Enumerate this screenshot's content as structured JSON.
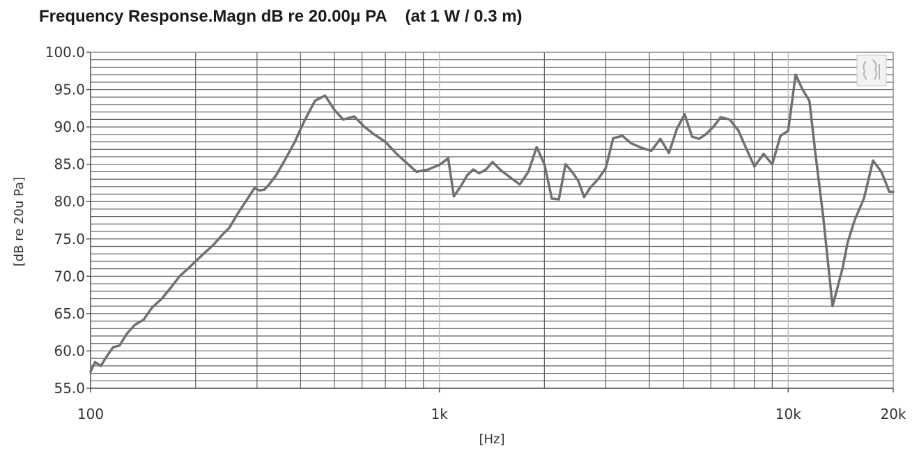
{
  "chart_data": {
    "type": "line",
    "title": "Frequency Response.Magn dB re 20.00μ PA    (at 1 W / 0.3 m)",
    "xlabel": "[Hz]",
    "ylabel": "[dB re 20u Pa]",
    "xscale": "log",
    "xlim": [
      100,
      20000
    ],
    "ylim": [
      55,
      100
    ],
    "grid": true,
    "line_color": "#707070",
    "grid_color": "#606060",
    "x_ticks": [
      {
        "value": 100,
        "label": "100"
      },
      {
        "value": 1000,
        "label": "1k"
      },
      {
        "value": 10000,
        "label": "10k"
      },
      {
        "value": 20000,
        "label": "20k"
      }
    ],
    "y_ticks": [
      {
        "value": 55,
        "label": "55.0"
      },
      {
        "value": 60,
        "label": "60.0"
      },
      {
        "value": 65,
        "label": "65.0"
      },
      {
        "value": 70,
        "label": "70.0"
      },
      {
        "value": 75,
        "label": "75.0"
      },
      {
        "value": 80,
        "label": "80.0"
      },
      {
        "value": 85,
        "label": "85.0"
      },
      {
        "value": 90,
        "label": "90.0"
      },
      {
        "value": 95,
        "label": "95.0"
      },
      {
        "value": 100,
        "label": "100.0"
      }
    ],
    "series": [
      {
        "x": [
          100,
          103,
          107,
          111,
          116,
          121,
          127,
          134,
          142,
          150,
          160,
          170,
          180,
          190,
          200,
          213,
          225,
          238,
          250,
          265,
          280,
          295,
          305,
          315,
          325,
          340,
          360,
          385,
          410,
          440,
          470,
          500,
          530,
          570,
          610,
          650,
          700,
          750,
          800,
          860,
          930,
          960,
          1000,
          1060,
          1100,
          1150,
          1200,
          1250,
          1300,
          1360,
          1420,
          1500,
          1600,
          1700,
          1800,
          1900,
          2000,
          2100,
          2200,
          2300,
          2400,
          2500,
          2600,
          2700,
          2850,
          3000,
          3150,
          3350,
          3550,
          3800,
          4050,
          4300,
          4550,
          4800,
          5050,
          5300,
          5550,
          5800,
          6100,
          6400,
          6800,
          7200,
          7600,
          8000,
          8500,
          9000,
          9500,
          10000,
          10500,
          11000,
          11500,
          12000,
          12600,
          13400,
          14300,
          14800,
          15500,
          16500,
          17500,
          18500,
          19500,
          20000
        ],
        "y": [
          57.2,
          58.5,
          58.0,
          59.2,
          60.5,
          60.7,
          62.3,
          63.5,
          64.2,
          65.8,
          67.0,
          68.5,
          70.0,
          71.0,
          72.0,
          73.2,
          74.2,
          75.5,
          76.5,
          78.5,
          80.2,
          81.8,
          81.5,
          81.6,
          82.3,
          83.5,
          85.5,
          88.0,
          90.8,
          93.5,
          94.2,
          92.3,
          91.0,
          91.4,
          90.0,
          89.0,
          88.0,
          86.5,
          85.3,
          84.0,
          84.3,
          84.6,
          84.9,
          85.8,
          80.7,
          82.0,
          83.5,
          84.3,
          83.8,
          84.3,
          85.3,
          84.2,
          83.2,
          82.3,
          84.0,
          87.3,
          85.0,
          80.4,
          80.3,
          85.0,
          84.0,
          82.8,
          80.6,
          81.8,
          83.0,
          84.5,
          88.5,
          88.8,
          87.8,
          87.2,
          86.8,
          88.4,
          86.5,
          89.8,
          91.7,
          88.7,
          88.4,
          89.0,
          90.0,
          91.3,
          91.0,
          89.5,
          87.0,
          84.7,
          86.4,
          85.0,
          88.8,
          89.5,
          97.0,
          95.0,
          93.5,
          86.0,
          78.0,
          66.0,
          71.0,
          74.5,
          77.5,
          80.5,
          85.5,
          84.0,
          81.3,
          81.3
        ]
      }
    ]
  }
}
